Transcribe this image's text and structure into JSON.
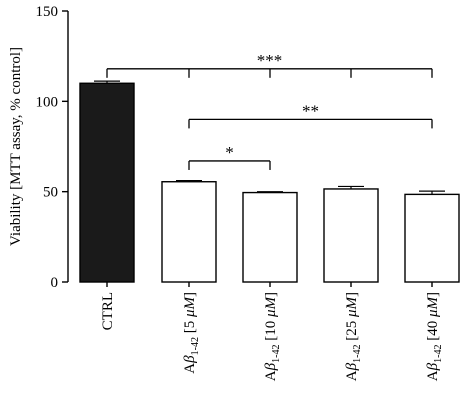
{
  "chart_data": {
    "type": "bar",
    "title": "",
    "ylabel": "Viability [MTT assay, % control]",
    "xlabel": "",
    "ylim": [
      0,
      150
    ],
    "yticks": [
      0,
      50,
      100,
      150
    ],
    "categories": [
      {
        "label": "CTRL",
        "value": 110,
        "error": 1.2,
        "fill": "#1a1a1a"
      },
      {
        "label": "Aβ1-42 [5 µM]",
        "prefix": "A",
        "greek": "β",
        "subscript": "1-42",
        "conc": "5",
        "unit": "μM",
        "value": 55.5,
        "error": 0.6,
        "fill": "#ffffff"
      },
      {
        "label": "Aβ1-42 [10 µM]",
        "prefix": "A",
        "greek": "β",
        "subscript": "1-42",
        "conc": "10",
        "unit": "μM",
        "value": 49.5,
        "error": 0.5,
        "fill": "#ffffff"
      },
      {
        "label": "Aβ1-42 [25 µM]",
        "prefix": "A",
        "greek": "β",
        "subscript": "1-42",
        "conc": "25",
        "unit": "μM",
        "value": 51.5,
        "error": 1.4,
        "fill": "#ffffff"
      },
      {
        "label": "Aβ1-42 [40 µM]",
        "prefix": "A",
        "greek": "β",
        "subscript": "1-42",
        "conc": "40",
        "unit": "μM",
        "value": 48.5,
        "error": 1.8,
        "fill": "#ffffff"
      }
    ],
    "significance": [
      {
        "label": "***",
        "from": 0,
        "to": [
          1,
          2,
          3,
          4
        ],
        "y_level": 118
      },
      {
        "label": "**",
        "from": 1,
        "to": [
          4
        ],
        "y_level": 90
      },
      {
        "label": "*",
        "from": 1,
        "to": [
          2
        ],
        "y_level": 67
      }
    ],
    "grid": false,
    "legend": "none"
  }
}
